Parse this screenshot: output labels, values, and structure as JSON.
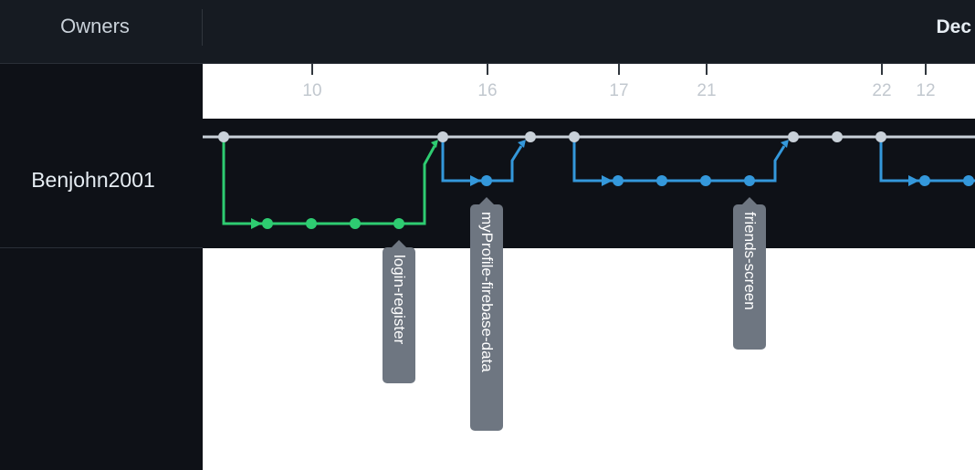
{
  "header": {
    "owners_label": "Owners",
    "month_label": "Dec"
  },
  "owners": [
    {
      "name": "Benjohn2001"
    }
  ],
  "dates": [
    "10",
    "16",
    "17",
    "21",
    "22",
    "12"
  ],
  "branches": [
    {
      "name": "login-register",
      "color": "#2ecc71"
    },
    {
      "name": "myProfile-firebase-data",
      "color": "#3498db"
    },
    {
      "name": "friends-screen",
      "color": "#3498db"
    }
  ],
  "colors": {
    "main_line": "#c9d1d9",
    "feature_green": "#2ecc71",
    "feature_blue": "#3498db",
    "tag_bg": "#6e7681",
    "row_bg": "#0e1117"
  }
}
